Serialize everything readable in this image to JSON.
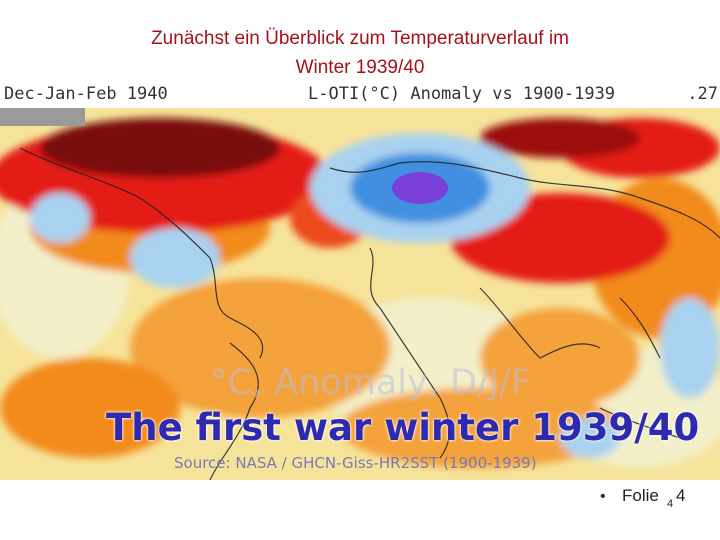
{
  "slide": {
    "title_line1": "Zunächst ein Überblick zum Temperaturverlauf im",
    "title_line2": "Winter 1939/40",
    "footer_bullet": "•",
    "footer_label": "Folie",
    "footer_subscript": "4",
    "footer_number": "4"
  },
  "map": {
    "header_left": "Dec-Jan-Feb 1940",
    "header_center": "L-OTI(°C) Anomaly vs 1900-1939",
    "header_right": ".27",
    "watermark": "°C, Anomaly, D/J/F",
    "headline": "The first war winter 1939/40",
    "source": "Source: NASA / GHCN-Giss-HR2SST (1900-1939)",
    "colors": {
      "dark_red": "#7a0d0d",
      "red": "#e31c12",
      "orange": "#f28b1d",
      "yellow": "#f9d264",
      "pale_yellow": "#f3efc9",
      "light_blue": "#a9d2f0",
      "blue": "#3f8fe0",
      "purple": "#7a3fd6",
      "grey": "#9a9a9a"
    }
  }
}
